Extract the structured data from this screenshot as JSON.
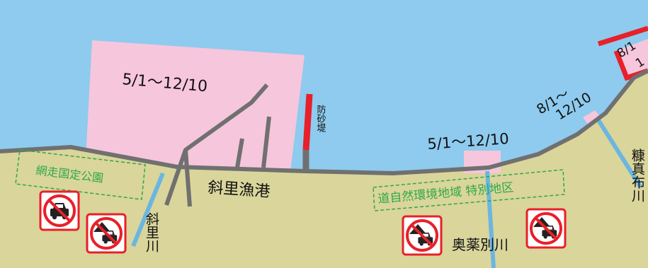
{
  "periods": {
    "harbor_zone": "5/1〜12/10",
    "okuyakubetsu_zone": "5/1〜12/10",
    "nukamappu_zone_line1": "8/1〜",
    "nukamappu_zone_line2": "12/10",
    "top_right_zone_line1": "8/1",
    "top_right_zone_line2": "1"
  },
  "places": {
    "breakwater": "防砂堤",
    "harbor": "斜里漁港",
    "shari_river": "斜里川",
    "okuyakubetsu_river": "奥薬別川",
    "nukamappu_river": "糠真布川",
    "park": "網走国定公園",
    "nature_area": "道自然環境地域 特別地区"
  },
  "icons": {
    "no_vehicle": "no-vehicle-icon",
    "no_vehicle_tent": "no-vehicle-tent-icon"
  },
  "colors": {
    "sea": "#8ecbee",
    "land": "#dad59b",
    "restricted_zone": "#f6c6dc",
    "coast_line": "#707070",
    "breakwater": "#e8202a",
    "river": "#6ab6e0",
    "protected_area": "#2fa84a",
    "prohibition": "#e8202a"
  }
}
